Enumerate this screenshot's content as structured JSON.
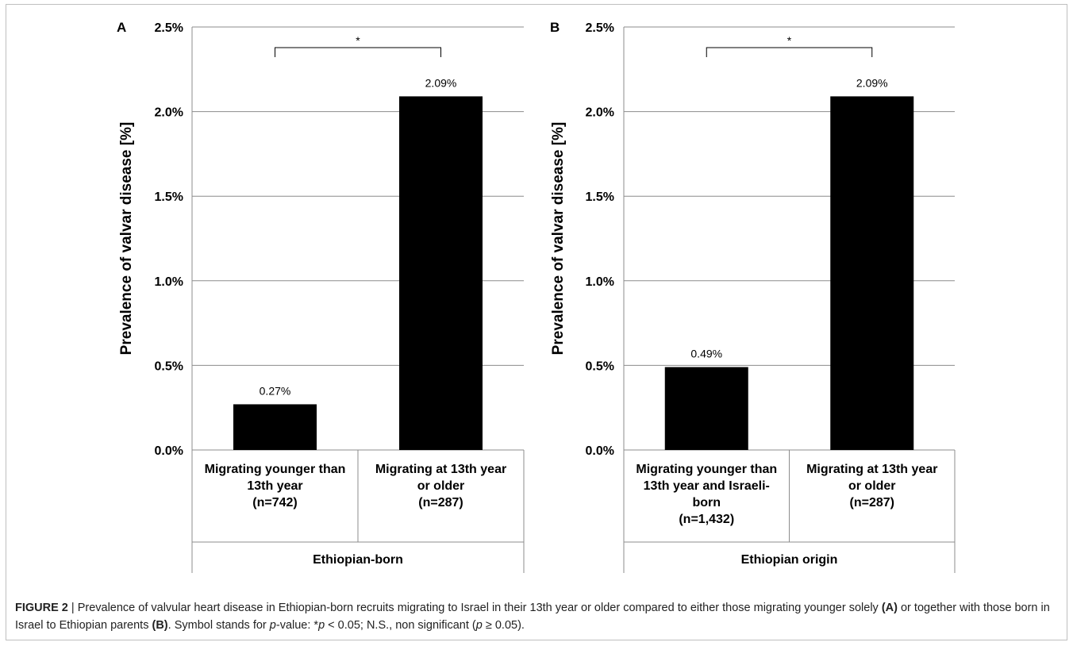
{
  "chart_data": [
    {
      "type": "bar",
      "panel_letter": "A",
      "ylabel": "Prevalence  of valvar disease [%]",
      "ylim": [
        0,
        2.5
      ],
      "yticks": [
        0,
        0.5,
        1.0,
        1.5,
        2.0,
        2.5
      ],
      "ytick_labels": [
        "0.0%",
        "0.5%",
        "1.0%",
        "1.5%",
        "2.0%",
        "2.5%"
      ],
      "grid": true,
      "categories": [
        [
          "Migrating younger than",
          "13th year",
          "(n=742)"
        ],
        [
          "Migrating at 13th year",
          "or older",
          "(n=287)"
        ]
      ],
      "values": [
        0.27,
        2.09
      ],
      "data_labels": [
        "0.27%",
        "2.09%"
      ],
      "group_label": "Ethiopian-born",
      "significance": "*",
      "bar_color": "#000000"
    },
    {
      "type": "bar",
      "panel_letter": "B",
      "ylabel": "Prevalence  of valvar disease [%]",
      "ylim": [
        0,
        2.5
      ],
      "yticks": [
        0,
        0.5,
        1.0,
        1.5,
        2.0,
        2.5
      ],
      "ytick_labels": [
        "0.0%",
        "0.5%",
        "1.0%",
        "1.5%",
        "2.0%",
        "2.5%"
      ],
      "grid": true,
      "categories": [
        [
          "Migrating younger than",
          "13th year and Israeli-",
          "born",
          "(n=1,432)"
        ],
        [
          "Migrating at 13th year",
          "or older",
          "(n=287)"
        ]
      ],
      "values": [
        0.49,
        2.09
      ],
      "data_labels": [
        "0.49%",
        "2.09%"
      ],
      "group_label": "Ethiopian origin",
      "significance": "*",
      "bar_color": "#000000"
    }
  ],
  "caption": {
    "label": "FIGURE 2",
    "sep": " | ",
    "t1": "Prevalence of valvular heart disease in Ethiopian-born recruits migrating to Israel in their 13th year or older compared to either those migrating younger solely ",
    "r1": "(A)",
    "t2": " or together with those born in Israel to Ethiopian parents ",
    "r2": "(B)",
    "t3": ". Symbol stands for ",
    "p1": "p",
    "t4": "-value: *",
    "p2": "p",
    "t5": " < 0.05; N.S., non significant (",
    "p3": "p",
    "t6": " ≥ 0.05)."
  }
}
